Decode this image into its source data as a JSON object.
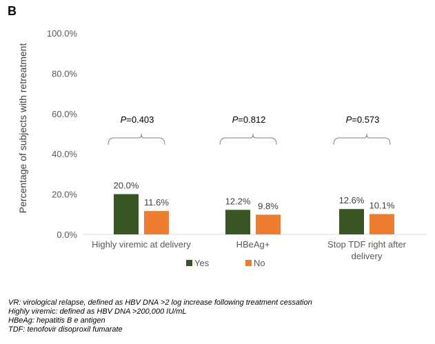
{
  "panel_label": "B",
  "colors": {
    "yes": "#375623",
    "no": "#ED7D31",
    "axis_text": "#595959",
    "bracket": "#7F7F7F"
  },
  "chart_data": {
    "type": "bar",
    "ylabel": "Percentage of subjects with retreatment",
    "ylim": [
      0,
      100
    ],
    "yticks": [
      "0.0%",
      "20.0%",
      "40.0%",
      "60.0%",
      "80.0%",
      "100.0%"
    ],
    "categories": [
      [
        "Highly viremic at delivery"
      ],
      [
        "HBeAg+"
      ],
      [
        "Stop TDF right after",
        "delivery"
      ]
    ],
    "series": [
      {
        "name": "Yes",
        "values": [
          20.0,
          12.2,
          12.6
        ],
        "labels": [
          "20.0%",
          "12.2%",
          "12.6%"
        ]
      },
      {
        "name": "No",
        "values": [
          11.6,
          9.8,
          10.1
        ],
        "labels": [
          "11.6%",
          "9.8%",
          "10.1%"
        ]
      }
    ],
    "pvalues": [
      {
        "prefix": "P",
        "text": "=0.403"
      },
      {
        "prefix": "P",
        "text": "=0.812"
      },
      {
        "prefix": "P",
        "text": "=0.573"
      }
    ],
    "legend_position": "bottom",
    "grid": false
  },
  "footnotes": [
    "VR: virological relapse, defined as HBV DNA >2 log increase following treatment cessation",
    "Highly viremic: defined as HBV DNA >200,000 IU/mL",
    "HBeAg: hepatitis B e antigen",
    "TDF: tenofovir disoproxil fumarate"
  ]
}
